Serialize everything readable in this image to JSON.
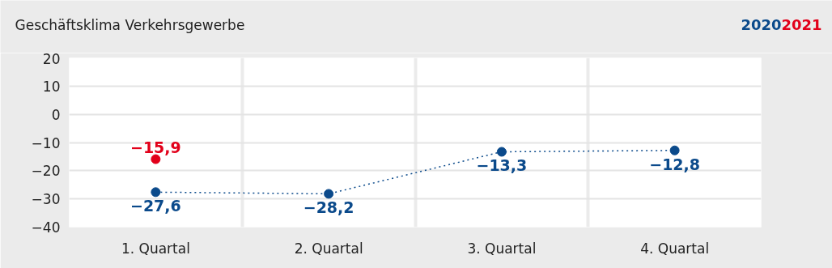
{
  "chart_data": {
    "type": "line",
    "title": "Geschäftsklima Verkehrsgewerbe",
    "categories": [
      "1. Quartal",
      "2. Quartal",
      "3. Quartal",
      "4. Quartal"
    ],
    "series": [
      {
        "name": "2020",
        "color": "#0b4a8b",
        "values": [
          -27.6,
          -28.2,
          -13.3,
          -12.8
        ],
        "value_labels": [
          "−27,6",
          "−28,2",
          "−13,3",
          "−12,8"
        ],
        "line_style": "dotted",
        "marker": "circle"
      },
      {
        "name": "2021",
        "color": "#e2001a",
        "values": [
          -15.9,
          null,
          null,
          null
        ],
        "value_labels": [
          "−15,9",
          null,
          null,
          null
        ],
        "marker": "circle"
      }
    ],
    "ylim": [
      -40,
      20
    ],
    "yticks": [
      {
        "value": -40,
        "label": "−40"
      },
      {
        "value": -30,
        "label": "−30"
      },
      {
        "value": -20,
        "label": "−20"
      },
      {
        "value": -10,
        "label": "−10"
      },
      0,
      10,
      20
    ],
    "grid": true
  }
}
